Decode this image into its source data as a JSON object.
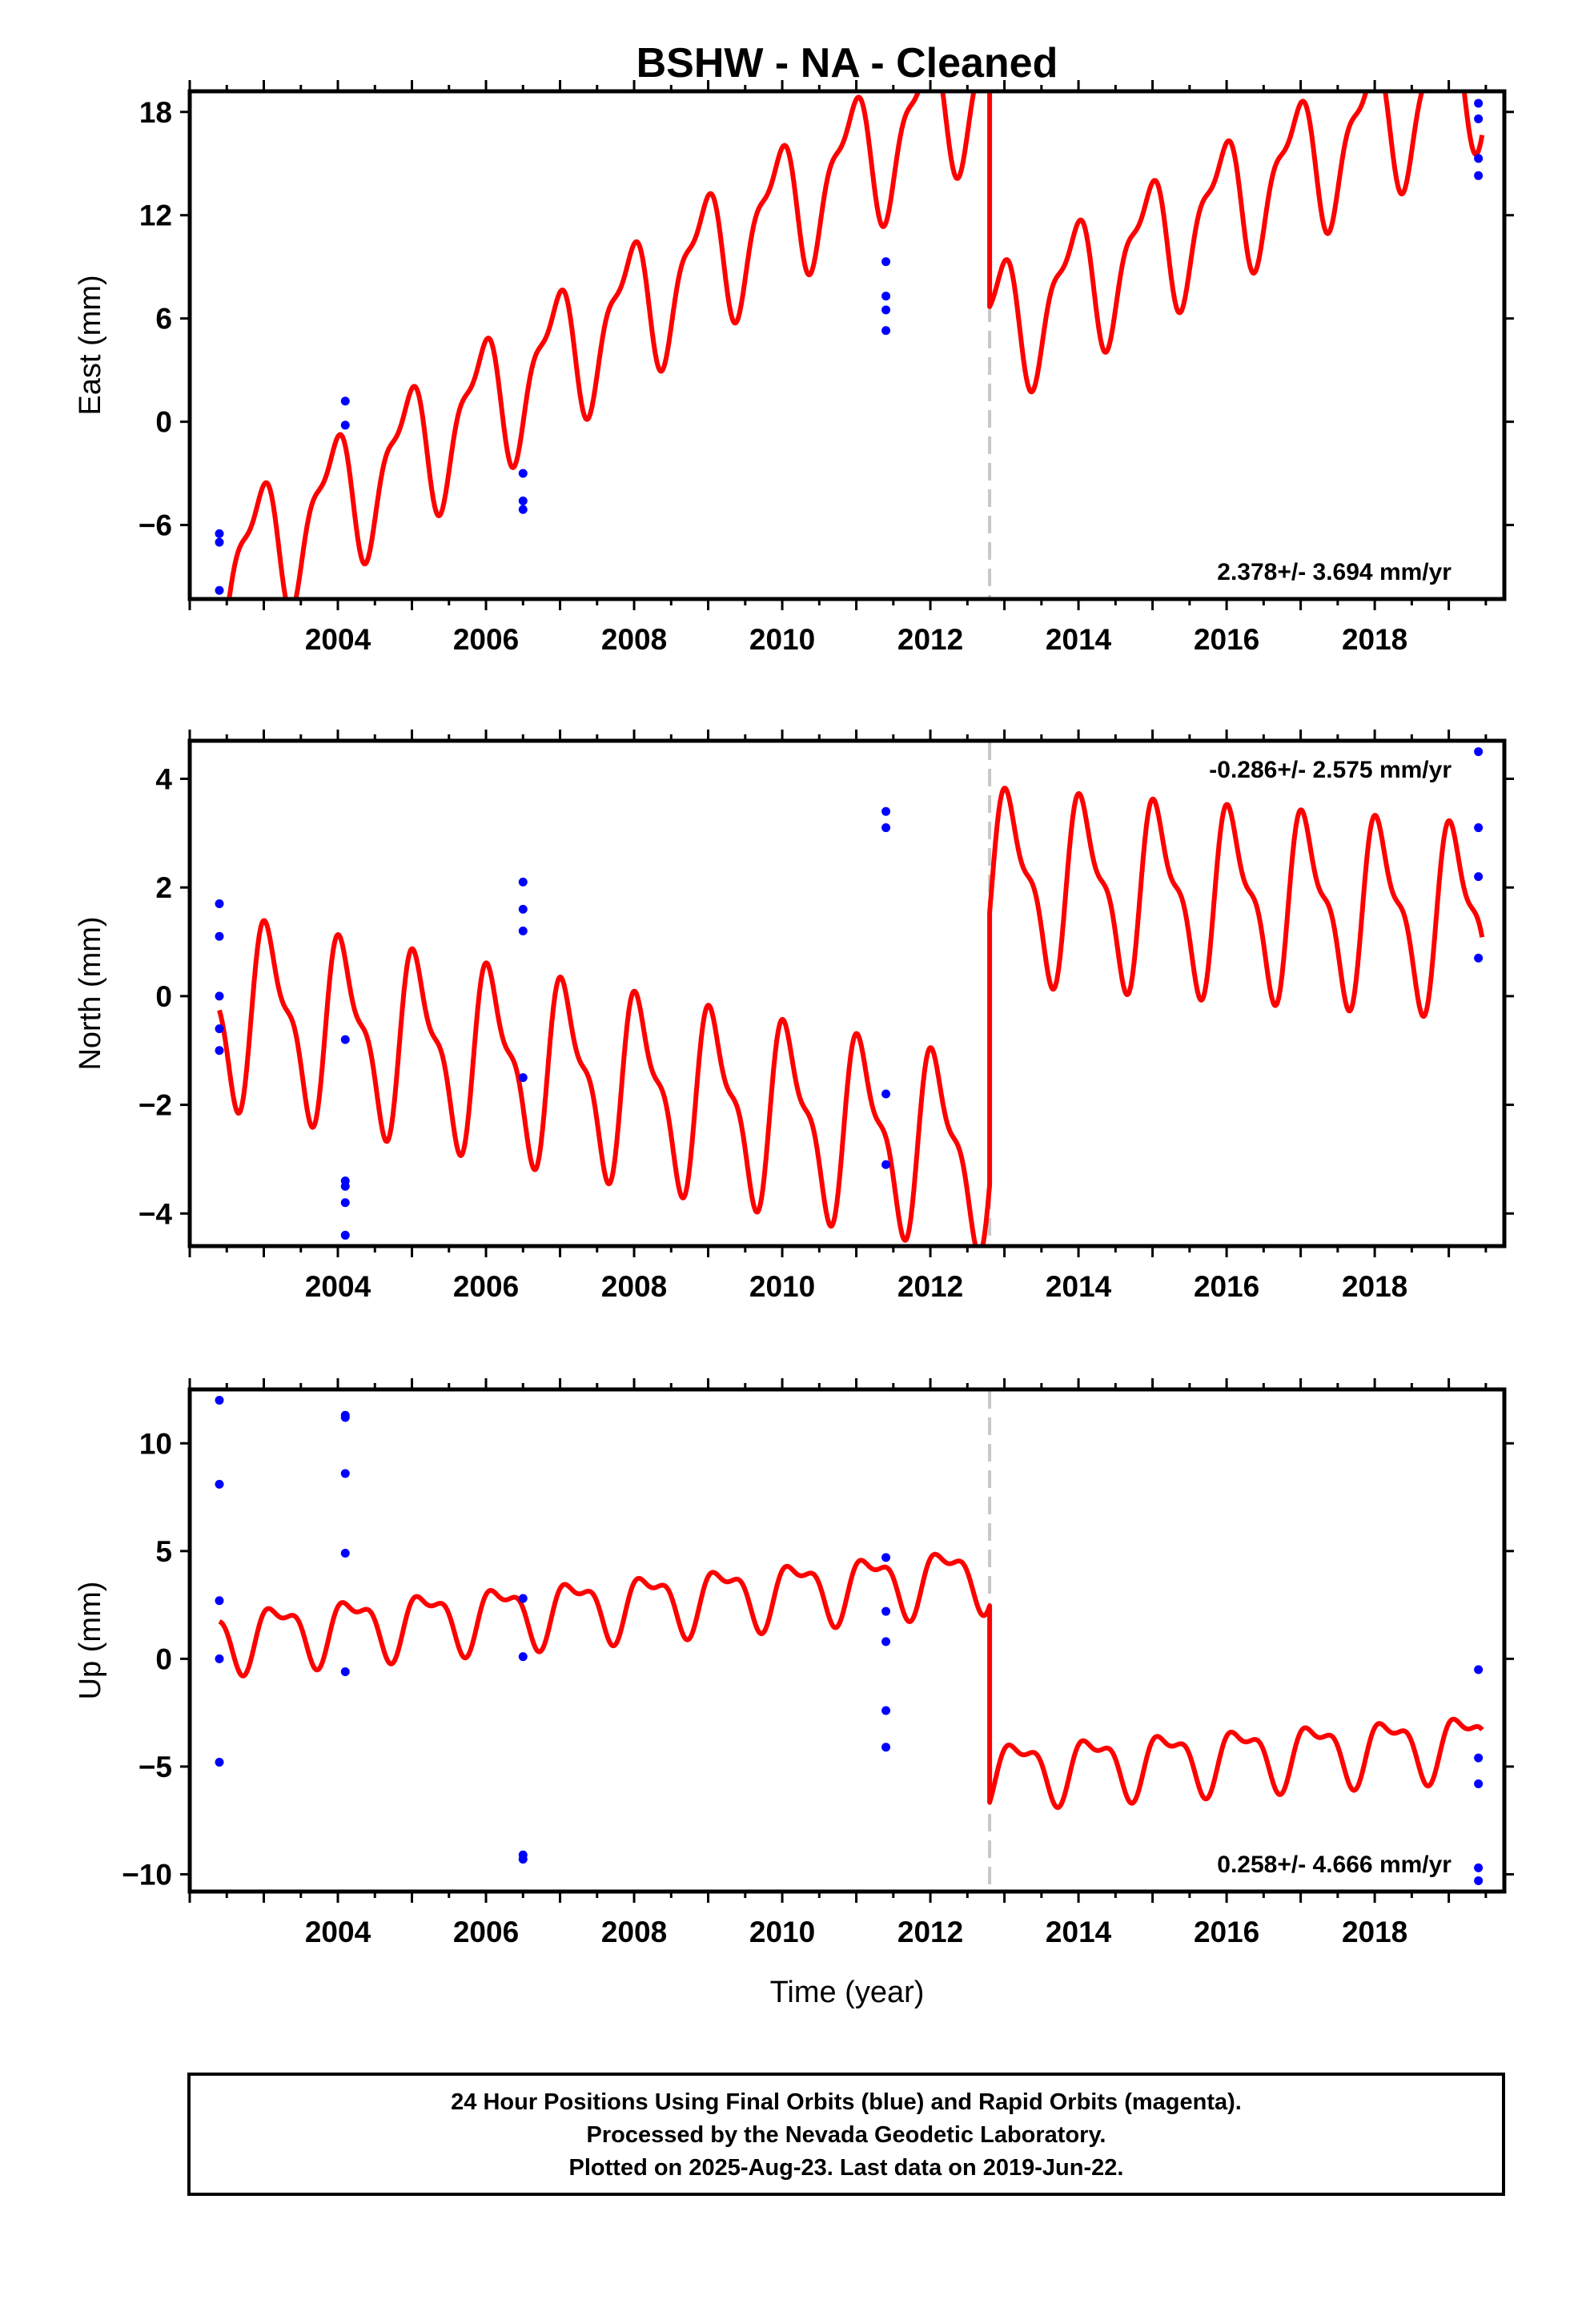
{
  "title": "BSHW  - NA - Cleaned",
  "chart_data": [
    {
      "type": "scatter",
      "panel": "east",
      "ylabel": "East (mm)",
      "xlim": [
        2002.0,
        2019.75
      ],
      "ylim": [
        -10.3,
        19.2
      ],
      "yticks": [
        -6,
        0,
        6,
        12,
        18
      ],
      "yticklabels": [
        "−6",
        "0",
        "6",
        "12",
        "18"
      ],
      "xticks": [
        2004,
        2006,
        2008,
        2010,
        2012,
        2014,
        2016,
        2018
      ],
      "xticklabels": [
        "2004",
        "2006",
        "2008",
        "2010",
        "2012",
        "2014",
        "2016",
        "2018"
      ],
      "rate_label": "2.378+/- 3.694 mm/yr",
      "rate_position": "bottom-right",
      "step_epoch": 2012.8,
      "points": [
        [
          2002.4,
          -6.5
        ],
        [
          2002.4,
          -7.0
        ],
        [
          2002.4,
          -9.8
        ],
        [
          2004.1,
          1.2
        ],
        [
          2004.1,
          -0.2
        ],
        [
          2006.5,
          -3.0
        ],
        [
          2006.5,
          -4.6
        ],
        [
          2006.5,
          -5.1
        ],
        [
          2011.4,
          9.3
        ],
        [
          2011.4,
          7.3
        ],
        [
          2011.4,
          6.5
        ],
        [
          2011.4,
          5.3
        ],
        [
          2019.4,
          18.5
        ],
        [
          2019.4,
          17.6
        ],
        [
          2019.4,
          15.3
        ],
        [
          2019.4,
          14.3
        ]
      ],
      "model": {
        "segments": [
          {
            "x_start": 2002.4,
            "x_end": 2012.8,
            "intercept_at_start": -9.0,
            "slope": 2.8
          },
          {
            "x_start": 2012.8,
            "x_end": 2019.45,
            "intercept_at_start": 5.2,
            "slope": 2.3
          }
        ],
        "annual_amplitude": 3.6,
        "annual_phase": 2.1,
        "semiannual_amplitude": 1.4,
        "semiannual_phase": 0.4
      }
    },
    {
      "type": "scatter",
      "panel": "north",
      "ylabel": "North (mm)",
      "xlim": [
        2002.0,
        2019.75
      ],
      "ylim": [
        -4.6,
        4.7
      ],
      "yticks": [
        -4,
        -2,
        0,
        2,
        4
      ],
      "yticklabels": [
        "−4",
        "−2",
        "0",
        "2",
        "4"
      ],
      "xticks": [
        2004,
        2006,
        2008,
        2010,
        2012,
        2014,
        2016,
        2018
      ],
      "xticklabels": [
        "2004",
        "2006",
        "2008",
        "2010",
        "2012",
        "2014",
        "2016",
        "2018"
      ],
      "rate_label": "-0.286+/- 2.575 mm/yr",
      "rate_position": "top-right",
      "step_epoch": 2012.8,
      "points": [
        [
          2002.4,
          1.7
        ],
        [
          2002.4,
          1.1
        ],
        [
          2002.4,
          0.0
        ],
        [
          2002.4,
          -0.6
        ],
        [
          2002.4,
          -1.0
        ],
        [
          2004.1,
          -0.8
        ],
        [
          2004.1,
          -3.4
        ],
        [
          2004.1,
          -3.5
        ],
        [
          2004.1,
          -3.8
        ],
        [
          2004.1,
          -4.4
        ],
        [
          2006.5,
          2.1
        ],
        [
          2006.5,
          1.6
        ],
        [
          2006.5,
          1.2
        ],
        [
          2006.5,
          -1.5
        ],
        [
          2011.4,
          3.4
        ],
        [
          2011.4,
          3.1
        ],
        [
          2011.4,
          -1.8
        ],
        [
          2011.4,
          -3.1
        ],
        [
          2019.4,
          4.5
        ],
        [
          2019.4,
          3.1
        ],
        [
          2019.4,
          2.2
        ],
        [
          2019.4,
          0.7
        ]
      ],
      "model": {
        "segments": [
          {
            "x_start": 2002.4,
            "x_end": 2012.8,
            "intercept_at_start": -0.2,
            "slope": -0.26
          },
          {
            "x_start": 2012.8,
            "x_end": 2019.45,
            "intercept_at_start": 2.1,
            "slope": -0.1
          }
        ],
        "annual_amplitude": 1.5,
        "annual_phase": 1.0,
        "semiannual_amplitude": 0.6,
        "semiannual_phase": 2.2
      }
    },
    {
      "type": "scatter",
      "panel": "up",
      "ylabel": "Up (mm)",
      "xlabel": "Time (year)",
      "xlim": [
        2002.0,
        2019.75
      ],
      "ylim": [
        -10.8,
        12.5
      ],
      "yticks": [
        -10,
        -5,
        0,
        5,
        10
      ],
      "yticklabels": [
        "−10",
        "−5",
        "0",
        "5",
        "10"
      ],
      "xticks": [
        2004,
        2006,
        2008,
        2010,
        2012,
        2014,
        2016,
        2018
      ],
      "xticklabels": [
        "2004",
        "2006",
        "2008",
        "2010",
        "2012",
        "2014",
        "2016",
        "2018"
      ],
      "rate_label": "0.258+/- 4.666 mm/yr",
      "rate_position": "bottom-right",
      "step_epoch": 2012.8,
      "points": [
        [
          2002.4,
          12.0
        ],
        [
          2002.4,
          8.1
        ],
        [
          2002.4,
          2.7
        ],
        [
          2002.4,
          0.0
        ],
        [
          2002.4,
          -4.8
        ],
        [
          2004.1,
          11.3
        ],
        [
          2004.1,
          11.2
        ],
        [
          2004.1,
          8.6
        ],
        [
          2004.1,
          4.9
        ],
        [
          2004.1,
          -0.6
        ],
        [
          2006.5,
          2.8
        ],
        [
          2006.5,
          0.1
        ],
        [
          2006.5,
          -9.1
        ],
        [
          2006.5,
          -9.3
        ],
        [
          2011.4,
          4.7
        ],
        [
          2011.4,
          2.2
        ],
        [
          2011.4,
          0.8
        ],
        [
          2011.4,
          -2.4
        ],
        [
          2011.4,
          -4.1
        ],
        [
          2019.4,
          -0.5
        ],
        [
          2019.4,
          -4.6
        ],
        [
          2019.4,
          -5.8
        ],
        [
          2019.4,
          -9.7
        ],
        [
          2019.4,
          -10.3
        ]
      ],
      "model": {
        "segments": [
          {
            "x_start": 2002.4,
            "x_end": 2012.8,
            "intercept_at_start": 1.0,
            "slope": 0.28
          },
          {
            "x_start": 2012.8,
            "x_end": 2019.45,
            "intercept_at_start": -5.2,
            "slope": 0.2
          }
        ],
        "annual_amplitude": 1.3,
        "annual_phase": 0.3,
        "semiannual_amplitude": 0.6,
        "semiannual_phase": 1.8
      }
    }
  ],
  "footer": {
    "line1": "24 Hour Positions Using Final Orbits (blue) and Rapid Orbits (magenta).",
    "line2": "Processed by the Nevada Geodetic Laboratory.",
    "line3": "Plotted on 2025-Aug-23. Last data on 2019-Jun-22."
  },
  "colors": {
    "model": "#ff0000",
    "points": "#0000ff",
    "step_line": "#c8c8c8",
    "frame": "#000000"
  }
}
